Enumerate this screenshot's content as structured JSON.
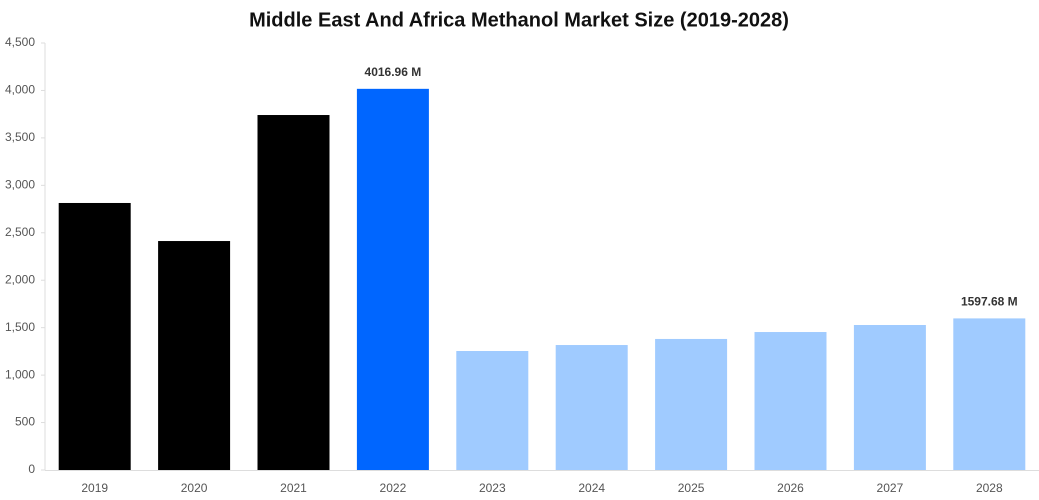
{
  "chart_data": {
    "type": "bar",
    "title": "Middle East And Africa Methanol Market Size (2019-2028)",
    "categories": [
      "2019",
      "2020",
      "2021",
      "2022",
      "2023",
      "2024",
      "2025",
      "2026",
      "2027",
      "2028"
    ],
    "values": [
      2814,
      2413,
      3741,
      4016.96,
      1254,
      1317,
      1381,
      1454,
      1528,
      1597.68
    ],
    "value_labels": [
      null,
      null,
      null,
      "4016.96 M",
      null,
      null,
      null,
      null,
      null,
      "1597.68 M"
    ],
    "colors": [
      "#000000",
      "#000000",
      "#000000",
      "#0066ff",
      "#a0cbff",
      "#a0cbff",
      "#a0cbff",
      "#a0cbff",
      "#a0cbff",
      "#a0cbff"
    ],
    "ylim": [
      0,
      4500
    ],
    "yticks": [
      0,
      500,
      {
        "value": 1000,
        "label": "1,000"
      },
      {
        "value": 1500,
        "label": "1,500"
      },
      {
        "value": 2000,
        "label": "2,000"
      },
      {
        "value": 2500,
        "label": "2,500"
      },
      {
        "value": 3000,
        "label": "3,000"
      },
      {
        "value": 3500,
        "label": "3,500"
      },
      {
        "value": 4000,
        "label": "4,000"
      },
      {
        "value": 4500,
        "label": "4,500"
      }
    ],
    "grid": false
  }
}
